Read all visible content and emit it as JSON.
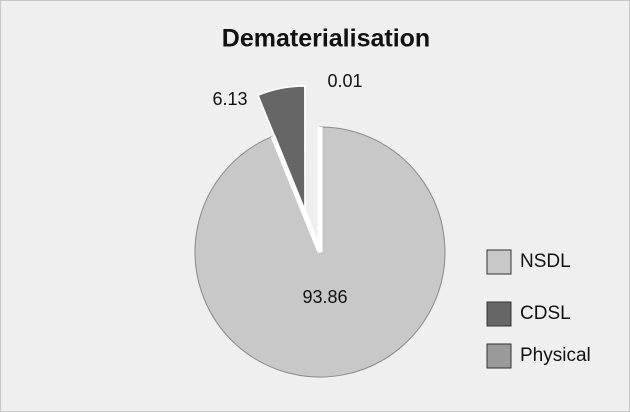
{
  "chart_data": {
    "type": "pie",
    "title": "Dematerialisation",
    "categories": [
      "NSDL",
      "CDSL",
      "Physical"
    ],
    "values": [
      93.86,
      6.13,
      0.01
    ],
    "colors": [
      "#c8c8c8",
      "#666666",
      "#9a9a9a"
    ],
    "legend": "right"
  }
}
